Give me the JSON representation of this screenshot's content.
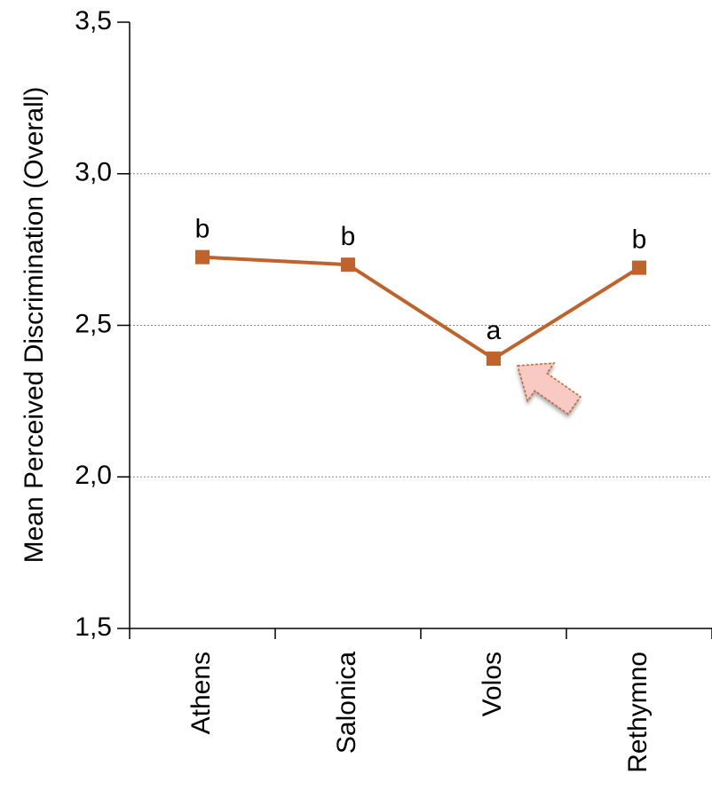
{
  "chart_data": {
    "type": "line",
    "y_label": "Mean Perceived Discrimination (Overall)",
    "categories": [
      "Athens",
      "Salonica",
      "Volos",
      "Rethymno"
    ],
    "series": [
      {
        "color": "#c0622b",
        "values": [
          2.725,
          2.7,
          2.39,
          2.69
        ]
      }
    ],
    "significance_labels": [
      "b",
      "b",
      "a",
      "b"
    ],
    "ylim": [
      1.5,
      3.5
    ],
    "yticks": [
      {
        "value": 1.5,
        "label": "1,5"
      },
      {
        "value": 2.0,
        "label": "2,0"
      },
      {
        "value": 2.5,
        "label": "2,5"
      },
      {
        "value": 3.0,
        "label": "3,0"
      },
      {
        "value": 3.5,
        "label": "3,5"
      }
    ],
    "grid": true
  }
}
